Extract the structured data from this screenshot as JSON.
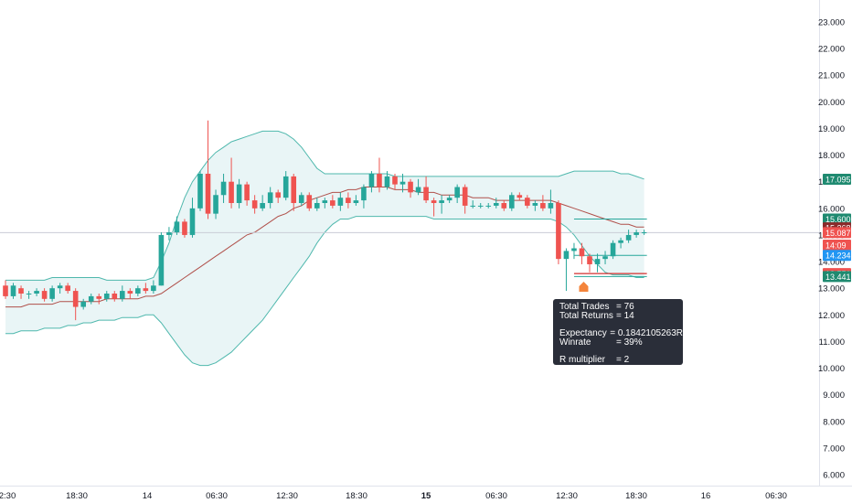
{
  "chart_data": {
    "type": "candlestick",
    "x_tick_labels": [
      "2:30",
      "18:30",
      "14",
      "06:30",
      "12:30",
      "18:30",
      "15",
      "06:30",
      "12:30",
      "18:30",
      "16",
      "06:30"
    ],
    "y_axis": {
      "ylim": [
        5.5,
        23.5
      ],
      "tick_labels": [
        "6.000",
        "7.000",
        "8.000",
        "9.000",
        "10.000",
        "11.000",
        "12.000",
        "13.000",
        "14.000",
        "15.000",
        "16.000",
        "17.000",
        "18.000",
        "19.000",
        "20.000",
        "21.000",
        "22.000",
        "23.000"
      ]
    },
    "candles": [
      [
        13.1,
        12.7,
        13.3,
        12.6
      ],
      [
        12.7,
        13.1,
        13.2,
        12.6
      ],
      [
        13.0,
        12.8,
        13.1,
        12.6
      ],
      [
        12.8,
        12.8,
        12.9,
        12.6
      ],
      [
        12.8,
        12.9,
        13.0,
        12.7
      ],
      [
        12.9,
        12.6,
        13.0,
        12.5
      ],
      [
        12.6,
        13.0,
        13.1,
        12.5
      ],
      [
        13.0,
        13.1,
        13.2,
        12.8
      ],
      [
        13.1,
        12.9,
        13.2,
        12.8
      ],
      [
        12.9,
        12.3,
        13.0,
        11.8
      ],
      [
        12.3,
        12.5,
        12.6,
        12.2
      ],
      [
        12.5,
        12.7,
        12.8,
        12.4
      ],
      [
        12.7,
        12.6,
        12.8,
        12.4
      ],
      [
        12.6,
        12.8,
        12.9,
        12.5
      ],
      [
        12.8,
        12.6,
        12.9,
        12.5
      ],
      [
        12.6,
        12.9,
        13.1,
        12.5
      ],
      [
        12.9,
        12.8,
        13.0,
        12.6
      ],
      [
        12.8,
        13.0,
        13.1,
        12.7
      ],
      [
        13.0,
        12.9,
        13.2,
        12.8
      ],
      [
        12.9,
        13.1,
        13.3,
        12.8
      ],
      [
        13.1,
        15.0,
        15.1,
        13.1
      ],
      [
        15.0,
        15.1,
        15.3,
        14.8
      ],
      [
        15.1,
        15.5,
        15.7,
        15.0
      ],
      [
        15.5,
        15.0,
        15.6,
        14.9
      ],
      [
        15.0,
        16.0,
        16.4,
        14.9
      ],
      [
        16.0,
        17.3,
        17.4,
        15.9
      ],
      [
        17.3,
        15.8,
        19.3,
        15.6
      ],
      [
        15.8,
        16.5,
        16.7,
        15.6
      ],
      [
        16.5,
        17.0,
        17.3,
        16.2
      ],
      [
        17.0,
        16.2,
        17.9,
        16.0
      ],
      [
        16.2,
        16.9,
        17.1,
        16.0
      ],
      [
        16.9,
        16.3,
        17.0,
        16.1
      ],
      [
        16.3,
        16.0,
        16.5,
        15.8
      ],
      [
        16.0,
        16.2,
        16.5,
        15.9
      ],
      [
        16.2,
        16.6,
        16.8,
        16.0
      ],
      [
        16.6,
        16.4,
        16.7,
        16.2
      ],
      [
        16.4,
        17.2,
        17.4,
        16.3
      ],
      [
        17.2,
        16.2,
        17.3,
        15.9
      ],
      [
        16.2,
        16.5,
        16.6,
        16.1
      ],
      [
        16.5,
        16.0,
        16.6,
        15.9
      ],
      [
        16.0,
        16.2,
        16.4,
        15.9
      ],
      [
        16.2,
        16.3,
        16.4,
        16.0
      ],
      [
        16.3,
        16.1,
        16.5,
        16.0
      ],
      [
        16.1,
        16.4,
        16.6,
        15.9
      ],
      [
        16.4,
        16.2,
        16.6,
        16.0
      ],
      [
        16.2,
        16.3,
        16.5,
        16.1
      ],
      [
        16.3,
        16.8,
        16.9,
        16.0
      ],
      [
        16.8,
        17.3,
        17.4,
        16.6
      ],
      [
        17.3,
        16.8,
        17.9,
        16.6
      ],
      [
        16.8,
        17.2,
        17.4,
        16.7
      ],
      [
        17.2,
        16.9,
        17.3,
        16.7
      ],
      [
        16.9,
        17.0,
        17.3,
        16.6
      ],
      [
        17.0,
        16.6,
        17.1,
        16.4
      ],
      [
        16.6,
        16.8,
        17.1,
        16.5
      ],
      [
        16.8,
        16.3,
        17.2,
        16.2
      ],
      [
        16.3,
        16.2,
        16.4,
        15.7
      ],
      [
        16.2,
        16.3,
        16.5,
        15.8
      ],
      [
        16.3,
        16.4,
        16.5,
        16.2
      ],
      [
        16.4,
        16.8,
        16.9,
        16.2
      ],
      [
        16.8,
        16.1,
        16.9,
        15.8
      ],
      [
        16.1,
        16.1,
        16.3,
        16.0
      ],
      [
        16.1,
        16.1,
        16.2,
        16.0
      ],
      [
        16.1,
        16.1,
        16.2,
        16.0
      ],
      [
        16.1,
        16.2,
        16.4,
        16.0
      ],
      [
        16.2,
        16.0,
        16.3,
        15.9
      ],
      [
        16.0,
        16.5,
        16.6,
        15.9
      ],
      [
        16.5,
        16.4,
        16.6,
        16.3
      ],
      [
        16.4,
        16.1,
        16.5,
        16.0
      ],
      [
        16.1,
        16.2,
        16.3,
        15.9
      ],
      [
        16.2,
        16.0,
        16.5,
        15.9
      ],
      [
        16.0,
        16.2,
        16.7,
        15.8
      ],
      [
        16.2,
        14.1,
        16.3,
        13.9
      ],
      [
        14.1,
        14.4,
        14.5,
        12.9
      ],
      [
        14.4,
        14.5,
        14.7,
        14.1
      ],
      [
        14.5,
        14.2,
        14.7,
        13.9
      ],
      [
        14.2,
        13.9,
        14.3,
        13.6
      ],
      [
        13.9,
        14.1,
        14.3,
        13.6
      ],
      [
        14.1,
        14.2,
        14.4,
        13.9
      ],
      [
        14.2,
        14.7,
        14.8,
        14.1
      ],
      [
        14.7,
        14.8,
        14.9,
        14.5
      ],
      [
        14.8,
        15.0,
        15.2,
        14.7
      ],
      [
        15.0,
        15.1,
        15.2,
        14.9
      ],
      [
        15.1,
        15.1,
        15.2,
        15.0
      ]
    ],
    "bollinger_upper": [
      13.3,
      13.3,
      13.3,
      13.3,
      13.3,
      13.3,
      13.4,
      13.4,
      13.4,
      13.4,
      13.4,
      13.4,
      13.4,
      13.3,
      13.3,
      13.3,
      13.3,
      13.3,
      13.3,
      13.4,
      14.0,
      14.7,
      15.6,
      16.4,
      17.0,
      17.4,
      17.8,
      18.1,
      18.3,
      18.5,
      18.6,
      18.7,
      18.8,
      18.9,
      18.9,
      18.9,
      18.8,
      18.6,
      18.3,
      17.9,
      17.5,
      17.3,
      17.3,
      17.3,
      17.3,
      17.3,
      17.3,
      17.3,
      17.3,
      17.3,
      17.2,
      17.2,
      17.2,
      17.2,
      17.2,
      17.2,
      17.2,
      17.2,
      17.2,
      17.2,
      17.2,
      17.2,
      17.2,
      17.2,
      17.2,
      17.2,
      17.2,
      17.2,
      17.2,
      17.2,
      17.2,
      17.2,
      17.3,
      17.4,
      17.4,
      17.4,
      17.4,
      17.4,
      17.4,
      17.3,
      17.3,
      17.2,
      17.1
    ],
    "bollinger_lower": [
      11.3,
      11.3,
      11.4,
      11.4,
      11.4,
      11.5,
      11.5,
      11.5,
      11.6,
      11.6,
      11.7,
      11.7,
      11.8,
      11.8,
      11.8,
      11.9,
      11.9,
      11.9,
      12.0,
      12.0,
      11.7,
      11.3,
      10.9,
      10.5,
      10.2,
      10.1,
      10.1,
      10.2,
      10.4,
      10.6,
      10.9,
      11.2,
      11.5,
      11.8,
      12.2,
      12.6,
      13.0,
      13.4,
      13.8,
      14.2,
      14.7,
      15.1,
      15.4,
      15.6,
      15.6,
      15.7,
      15.7,
      15.7,
      15.7,
      15.7,
      15.7,
      15.7,
      15.7,
      15.7,
      15.7,
      15.6,
      15.6,
      15.6,
      15.6,
      15.6,
      15.6,
      15.6,
      15.6,
      15.6,
      15.6,
      15.6,
      15.6,
      15.6,
      15.6,
      15.6,
      15.6,
      15.5,
      15.3,
      15.0,
      14.6,
      14.2,
      13.9,
      13.6,
      13.5,
      13.5,
      13.5,
      13.4,
      13.4
    ],
    "bollinger_middle": [
      12.3,
      12.3,
      12.3,
      12.4,
      12.4,
      12.4,
      12.4,
      12.5,
      12.5,
      12.5,
      12.5,
      12.5,
      12.5,
      12.6,
      12.6,
      12.6,
      12.6,
      12.6,
      12.7,
      12.7,
      12.8,
      13.0,
      13.2,
      13.4,
      13.6,
      13.8,
      14.0,
      14.2,
      14.4,
      14.6,
      14.8,
      15.0,
      15.1,
      15.3,
      15.5,
      15.7,
      15.8,
      16.0,
      16.1,
      16.3,
      16.4,
      16.5,
      16.6,
      16.6,
      16.7,
      16.7,
      16.8,
      16.8,
      16.8,
      16.8,
      16.7,
      16.7,
      16.7,
      16.6,
      16.6,
      16.6,
      16.5,
      16.5,
      16.5,
      16.5,
      16.4,
      16.4,
      16.4,
      16.3,
      16.3,
      16.3,
      16.3,
      16.3,
      16.3,
      16.3,
      16.3,
      16.2,
      16.1,
      16.0,
      15.9,
      15.8,
      15.7,
      15.6,
      15.5,
      15.4,
      15.4,
      15.3,
      15.3
    ],
    "price_labels": [
      {
        "text": "17.095",
        "value": 17.095,
        "color": "#1f8a70"
      },
      {
        "text": "15.600",
        "value": 15.6,
        "color": "#1f8a70"
      },
      {
        "text": "15.268",
        "value": 15.268,
        "color": "#8b2a2a"
      },
      {
        "text": "15.087",
        "value": 15.087,
        "color": "#ef5350"
      },
      {
        "text": "14:09",
        "value": 14.62,
        "color": "#ef5350"
      },
      {
        "text": "14.234",
        "value": 14.234,
        "color": "#2196f3"
      },
      {
        "text": "13.551",
        "value": 13.551,
        "color": "#ef5350"
      },
      {
        "text": "13.441",
        "value": 13.441,
        "color": "#1f8a70"
      }
    ],
    "current_price": 15.087,
    "trade_levels": {
      "take_profit": 15.6,
      "entry": 14.234,
      "stop": 13.551,
      "low": 13.441
    },
    "signal_marker_color": "#f4843b",
    "colors": {
      "up": "#26a69a",
      "down": "#ef5350",
      "band_line": "#4fb8ad",
      "band_fill": "#e9f5f6",
      "basis": "#b0504a"
    }
  },
  "stats_tooltip": {
    "rows": [
      {
        "key": "Total Trades",
        "value": "= 76"
      },
      {
        "key": "Total Returns",
        "value": "= 14"
      },
      {
        "key": "Expectancy",
        "value": "= 0.1842105263R"
      },
      {
        "key": "Winrate",
        "value": "= 39%"
      },
      {
        "key": "R multiplier",
        "value": "= 2"
      }
    ]
  }
}
